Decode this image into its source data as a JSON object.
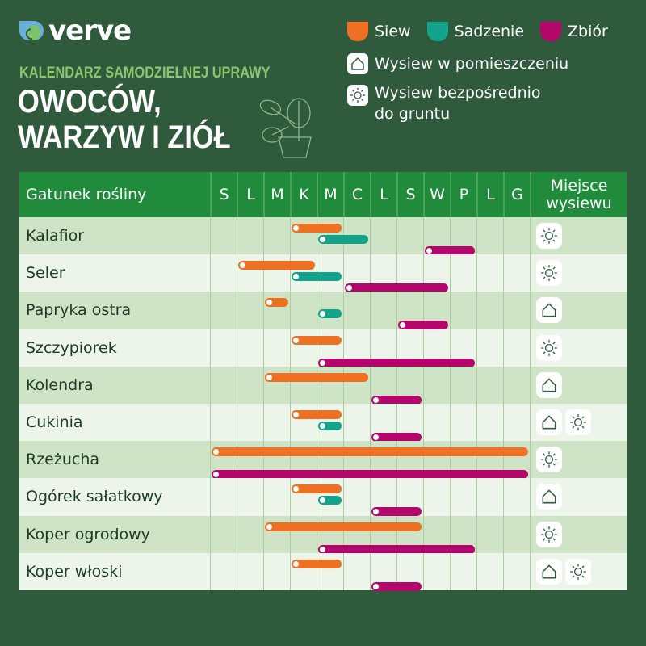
{
  "brand": {
    "logo_text": "verve"
  },
  "header": {
    "subtitle": "KALENDARZ SAMODZIELNEJ UPRAWY",
    "title_line1": "OWOCÓW,",
    "title_line2": "WARZYW I ZIÓŁ"
  },
  "legend": {
    "siew": "Siew",
    "sadzenie": "Sadzenie",
    "zbior": "Zbiór",
    "indoor": "Wysiew w pomieszczeniu",
    "direct_line1": "Wysiew bezpośrednio",
    "direct_line2": "do gruntu"
  },
  "colors": {
    "siew": "#ee7023",
    "sadzenie": "#13a38a",
    "zbior": "#b5076b",
    "background": "#2f5a3c",
    "header": "#1f8b3b"
  },
  "chart_data": {
    "type": "gantt",
    "header_plant": "Gatunek rośliny",
    "header_place_line1": "Miejsce",
    "header_place_line2": "wysiewu",
    "months": [
      "S",
      "L",
      "M",
      "K",
      "M",
      "C",
      "L",
      "S",
      "W",
      "P",
      "L",
      "G"
    ],
    "series": [
      "Siew",
      "Sadzenie",
      "Zbiór"
    ],
    "rows": [
      {
        "name": "Kalafior",
        "siew": [
          4,
          5
        ],
        "sadzenie": [
          5,
          6
        ],
        "zbior": [
          9,
          10
        ],
        "place": [
          "sun-icon"
        ]
      },
      {
        "name": "Seler",
        "siew": [
          2,
          4
        ],
        "sadzenie": [
          4,
          5
        ],
        "zbior": [
          6,
          9
        ],
        "place": [
          "sun-icon"
        ]
      },
      {
        "name": "Papryka ostra",
        "siew": [
          3,
          3
        ],
        "sadzenie": [
          5,
          5
        ],
        "zbior": [
          8,
          9
        ],
        "place": [
          "house-icon"
        ]
      },
      {
        "name": "Szczypiorek",
        "siew": [
          4,
          5
        ],
        "sadzenie": null,
        "zbior": [
          5,
          10
        ],
        "place": [
          "sun-icon"
        ]
      },
      {
        "name": "Kolendra",
        "siew": [
          3,
          6
        ],
        "sadzenie": null,
        "zbior": [
          7,
          8
        ],
        "place": [
          "house-icon"
        ]
      },
      {
        "name": "Cukinia",
        "siew": [
          4,
          5
        ],
        "sadzenie": [
          5,
          5
        ],
        "zbior": [
          7,
          8
        ],
        "place": [
          "house-icon",
          "sun-icon"
        ]
      },
      {
        "name": "Rzeżucha",
        "siew": [
          1,
          12
        ],
        "sadzenie": null,
        "zbior": [
          1,
          12
        ],
        "place": [
          "sun-icon"
        ]
      },
      {
        "name": "Ogórek sałatkowy",
        "siew": [
          4,
          5
        ],
        "sadzenie": [
          5,
          5
        ],
        "zbior": [
          7,
          8
        ],
        "place": [
          "house-icon"
        ]
      },
      {
        "name": "Koper ogrodowy",
        "siew": [
          3,
          8
        ],
        "sadzenie": null,
        "zbior": [
          5,
          10
        ],
        "place": [
          "sun-icon"
        ]
      },
      {
        "name": "Koper włoski",
        "siew": [
          4,
          5
        ],
        "sadzenie": null,
        "zbior": [
          7,
          8
        ],
        "place": [
          "house-icon",
          "sun-icon"
        ]
      }
    ]
  }
}
